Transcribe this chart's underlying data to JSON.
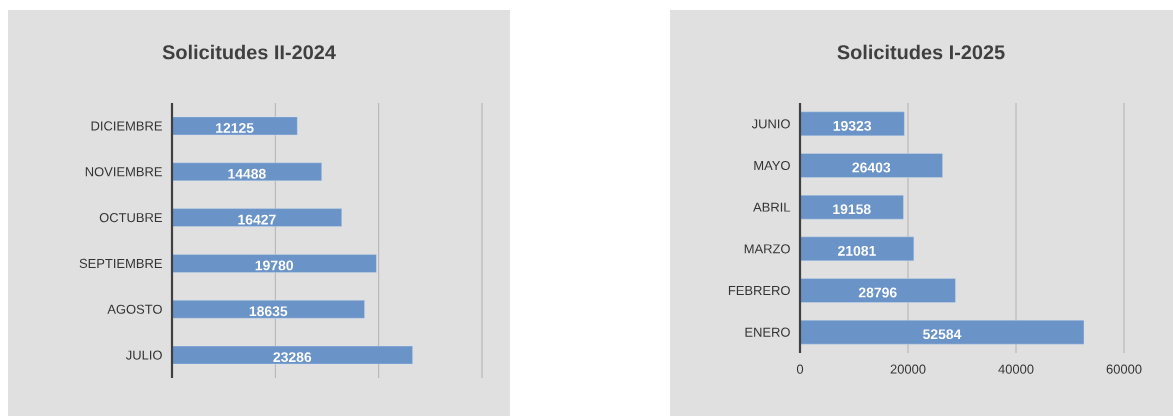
{
  "chart_data": [
    {
      "type": "bar",
      "orientation": "horizontal",
      "title": "Solicitudes II-2024",
      "categories": [
        "DICIEMBRE",
        "NOVIEMBRE",
        "OCTUBRE",
        "SEPTIEMBRE",
        "AGOSTO",
        "JULIO"
      ],
      "values": [
        12125,
        14488,
        16427,
        19780,
        18635,
        23286
      ],
      "color": "#6a93c8",
      "xlim": [
        0,
        30000
      ],
      "xticks": [
        {
          "value": 0,
          "label": null
        },
        {
          "value": 10000,
          "label": null
        },
        {
          "value": 20000,
          "label": null
        },
        {
          "value": 30000,
          "label": null
        }
      ],
      "tick_labels": "y",
      "grid": "x",
      "data_labels": true
    },
    {
      "type": "bar",
      "orientation": "horizontal",
      "title": "Solicitudes I-2025",
      "categories": [
        "JUNIO",
        "MAYO",
        "ABRIL",
        "MARZO",
        "FEBRERO",
        "ENERO"
      ],
      "values": [
        19323,
        26403,
        19158,
        21081,
        28796,
        52584
      ],
      "color": "#6a93c8",
      "xlim": [
        0,
        60000
      ],
      "xticks": [
        0,
        20000,
        40000,
        60000
      ],
      "grid": "x",
      "data_labels": true
    }
  ]
}
